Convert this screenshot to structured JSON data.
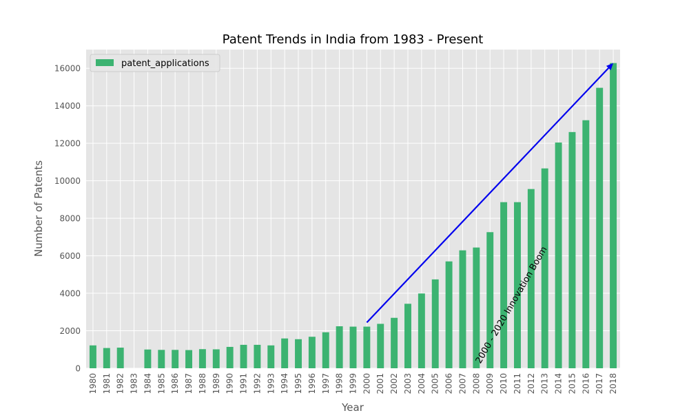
{
  "chart_data": {
    "type": "bar",
    "title": "Patent Trends in India from 1983 - Present",
    "xlabel": "Year",
    "ylabel": "Number of Patents",
    "ylim": [
      0,
      17000
    ],
    "yticks": [
      0,
      2000,
      4000,
      6000,
      8000,
      10000,
      12000,
      14000,
      16000
    ],
    "grid": true,
    "legend_position": "top-left",
    "categories": [
      "1980",
      "1981",
      "1982",
      "1983",
      "1984",
      "1985",
      "1986",
      "1987",
      "1988",
      "1989",
      "1990",
      "1991",
      "1992",
      "1993",
      "1994",
      "1995",
      "1996",
      "1997",
      "1998",
      "1999",
      "2000",
      "2001",
      "2002",
      "2003",
      "2004",
      "2005",
      "2006",
      "2007",
      "2008",
      "2009",
      "2010",
      "2011",
      "2012",
      "2013",
      "2014",
      "2015",
      "2016",
      "2017",
      "2018"
    ],
    "series": [
      {
        "name": "patent_applications",
        "color": "#3cb371",
        "values": [
          1220,
          1080,
          1100,
          0,
          1000,
          980,
          980,
          970,
          1020,
          1010,
          1140,
          1250,
          1250,
          1220,
          1590,
          1550,
          1680,
          1920,
          2240,
          2220,
          2220,
          2370,
          2690,
          3440,
          3990,
          4740,
          5700,
          6290,
          6440,
          7260,
          8860,
          8860,
          9560,
          10660,
          12040,
          12600,
          13230,
          14960,
          16280
        ]
      }
    ],
    "annotation": {
      "text": "2000 - 2020 Innovation Boom",
      "color": "#0000ee",
      "from": {
        "x": "2000",
        "y": 2220
      },
      "to": {
        "x": "2018",
        "y": 16280
      }
    },
    "colors": {
      "plot_background": "#e5e5e5",
      "grid": "#ffffff",
      "text": "#555555"
    }
  }
}
